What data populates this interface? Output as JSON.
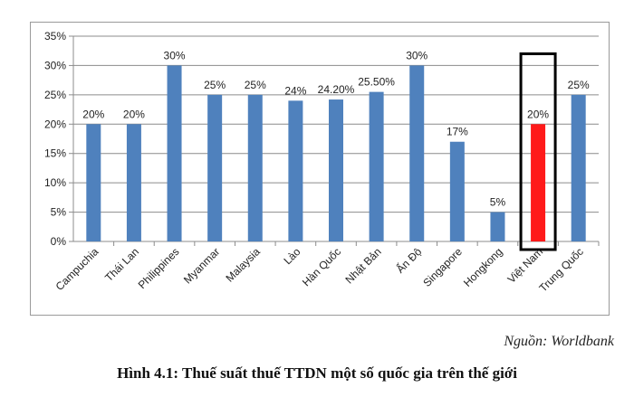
{
  "chart_data": {
    "type": "bar",
    "categories": [
      "Campuchia",
      "Thái Lan",
      "Philippines",
      "Myanmar",
      "Malaysia",
      "Lào",
      "Hàn Quốc",
      "Nhật Bản",
      "Ấn Độ",
      "Singapore",
      "Hongkong",
      "Việt Nam",
      "Trung Quốc"
    ],
    "values": [
      20,
      20,
      30,
      25,
      25,
      24,
      24.2,
      25.5,
      30,
      17,
      5,
      20,
      25
    ],
    "data_labels": [
      "20%",
      "20%",
      "30%",
      "25%",
      "25%",
      "24%",
      "24.20%",
      "25.50%",
      "30%",
      "17%",
      "5%",
      "20%",
      "25%"
    ],
    "y_ticks": [
      "0%",
      "5%",
      "10%",
      "15%",
      "20%",
      "25%",
      "30%",
      "35%"
    ],
    "ylim": [
      0,
      35
    ],
    "grid": true,
    "bar_color": "#4f81bd",
    "highlight": {
      "category": "Việt Nam",
      "color": "#ff1a1a",
      "box_color": "#000000"
    }
  },
  "source_text": "Nguồn: Worldbank",
  "caption": "Hình 4.1: Thuế suất thuế TTDN một số quốc gia trên thế giới"
}
